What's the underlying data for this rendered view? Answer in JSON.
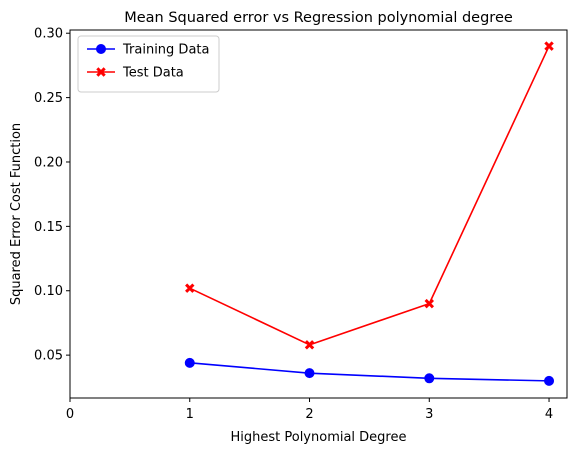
{
  "chart_data": {
    "type": "line",
    "title": "Mean Squared error vs Regression polynomial degree",
    "xlabel": "Highest Polynomial Degree",
    "ylabel": "Squared Error Cost Function",
    "x": [
      1,
      2,
      3,
      4
    ],
    "xlim": [
      0,
      4.15
    ],
    "ylim": [
      0.0167,
      0.3025
    ],
    "xticks": [
      0,
      1,
      2,
      3,
      4
    ],
    "xtick_labels": [
      "0",
      "1",
      "2",
      "3",
      "4"
    ],
    "yticks": [
      0.05,
      0.1,
      0.15,
      0.2,
      0.25,
      0.3
    ],
    "ytick_labels": [
      "0.05",
      "0.10",
      "0.15",
      "0.20",
      "0.25",
      "0.30"
    ],
    "grid": false,
    "legend_position": "top-left",
    "series": [
      {
        "name": "Training Data",
        "values": [
          0.044,
          0.036,
          0.032,
          0.03
        ],
        "color": "#0000ff",
        "marker": "circle"
      },
      {
        "name": "Test Data",
        "values": [
          0.102,
          0.058,
          0.09,
          0.29
        ],
        "color": "#ff0000",
        "marker": "x"
      }
    ]
  }
}
